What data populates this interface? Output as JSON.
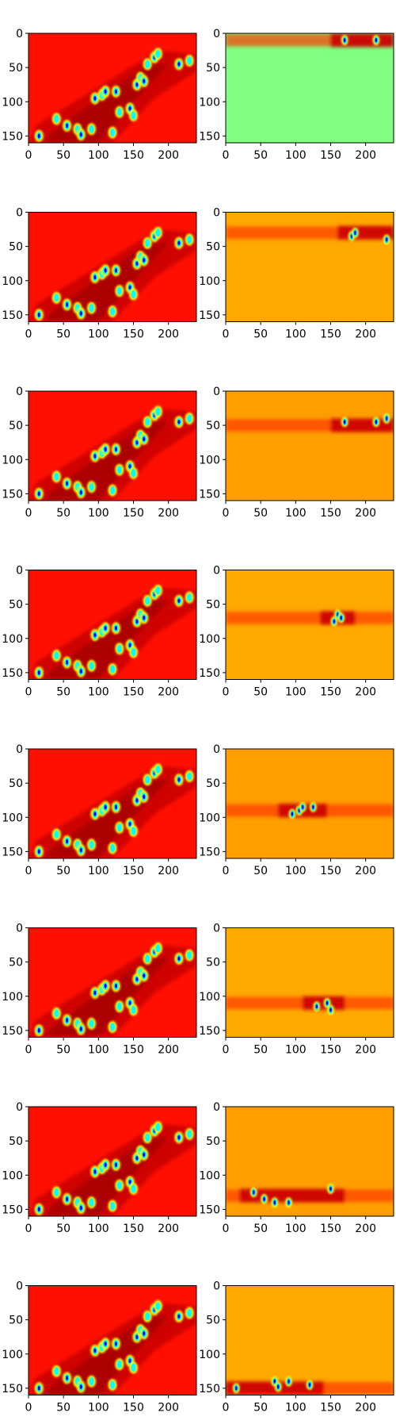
{
  "chart_data": {
    "type": "heatmap",
    "colormap": "jet",
    "layout": {
      "rows": 8,
      "cols": 2
    },
    "image_shape": {
      "width": 240,
      "height": 160
    },
    "xlim": [
      0,
      240
    ],
    "ylim": [
      160,
      0
    ],
    "xticks": [
      "0",
      "50",
      "100",
      "150",
      "200"
    ],
    "yticks": [
      "0",
      "50",
      "100",
      "150"
    ],
    "xtick_values": [
      0,
      50,
      100,
      150,
      200
    ],
    "ytick_values": [
      0,
      50,
      100,
      150
    ],
    "background_levels": [
      0.86,
      0.71
    ],
    "blob_coordinates": [
      [
        15,
        150
      ],
      [
        40,
        125
      ],
      [
        55,
        135
      ],
      [
        70,
        140
      ],
      [
        75,
        148
      ],
      [
        90,
        140
      ],
      [
        95,
        95
      ],
      [
        105,
        90
      ],
      [
        110,
        85
      ],
      [
        120,
        145
      ],
      [
        125,
        85
      ],
      [
        130,
        115
      ],
      [
        145,
        110
      ],
      [
        150,
        120
      ],
      [
        155,
        75
      ],
      [
        160,
        65
      ],
      [
        165,
        70
      ],
      [
        170,
        45
      ],
      [
        180,
        35
      ],
      [
        185,
        30
      ],
      [
        215,
        45
      ],
      [
        230,
        40
      ]
    ],
    "panels": [
      {
        "row": 0,
        "col": 0,
        "band_center_y": null
      },
      {
        "row": 0,
        "col": 1,
        "band_center_y": 10
      },
      {
        "row": 1,
        "col": 0,
        "band_center_y": null
      },
      {
        "row": 1,
        "col": 1,
        "band_center_y": 30
      },
      {
        "row": 2,
        "col": 0,
        "band_center_y": null
      },
      {
        "row": 2,
        "col": 1,
        "band_center_y": 50
      },
      {
        "row": 3,
        "col": 0,
        "band_center_y": null
      },
      {
        "row": 3,
        "col": 1,
        "band_center_y": 70
      },
      {
        "row": 4,
        "col": 0,
        "band_center_y": null
      },
      {
        "row": 4,
        "col": 1,
        "band_center_y": 90
      },
      {
        "row": 5,
        "col": 0,
        "band_center_y": null
      },
      {
        "row": 5,
        "col": 1,
        "band_center_y": 110
      },
      {
        "row": 6,
        "col": 0,
        "band_center_y": null
      },
      {
        "row": 6,
        "col": 1,
        "band_center_y": 130
      },
      {
        "row": 7,
        "col": 0,
        "band_center_y": null
      },
      {
        "row": 7,
        "col": 1,
        "band_center_y": 150
      }
    ]
  }
}
